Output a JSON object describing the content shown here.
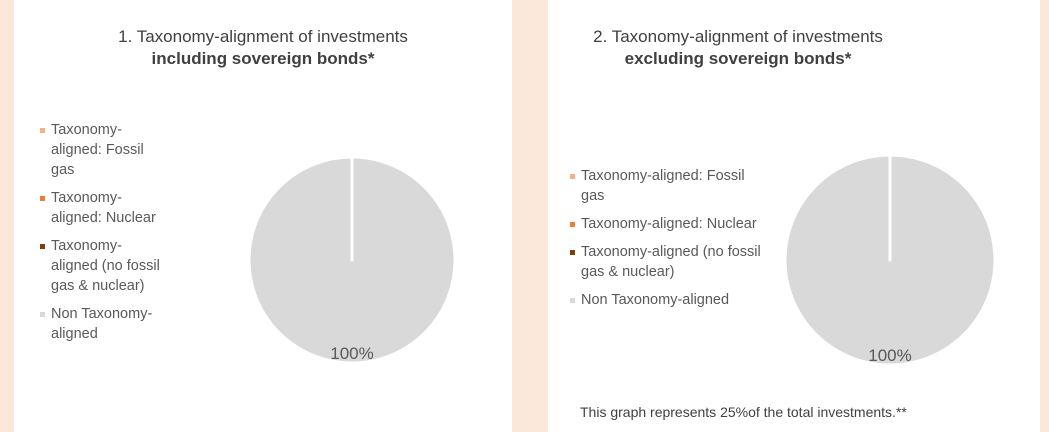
{
  "chart_data": [
    {
      "type": "pie",
      "title": "1. Taxonomy-alignment of investments",
      "subtitle": "including sovereign bonds*",
      "categories": [
        "Taxonomy-aligned: Fossil gas",
        "Taxonomy-aligned: Nuclear",
        "Taxonomy-aligned (no fossil gas & nuclear)",
        "Non Taxonomy-aligned"
      ],
      "values": [
        0,
        0,
        0,
        100
      ],
      "value_labels": [
        null,
        null,
        null,
        "100%"
      ],
      "colors": [
        "#f4b183",
        "#ed7d31",
        "#843c0c",
        "#d9d9d9"
      ]
    },
    {
      "type": "pie",
      "title": "2. Taxonomy-alignment of investments",
      "subtitle": "excluding sovereign bonds*",
      "categories": [
        "Taxonomy-aligned: Fossil gas",
        "Taxonomy-aligned: Nuclear",
        "Taxonomy-aligned (no fossil gas & nuclear)",
        "Non Taxonomy-aligned"
      ],
      "values": [
        0,
        0,
        0,
        100
      ],
      "value_labels": [
        null,
        null,
        null,
        "100%"
      ],
      "colors": [
        "#f4b183",
        "#ed7d31",
        "#843c0c",
        "#d9d9d9"
      ],
      "note": "This graph represents 25%of the total investments.**"
    }
  ]
}
